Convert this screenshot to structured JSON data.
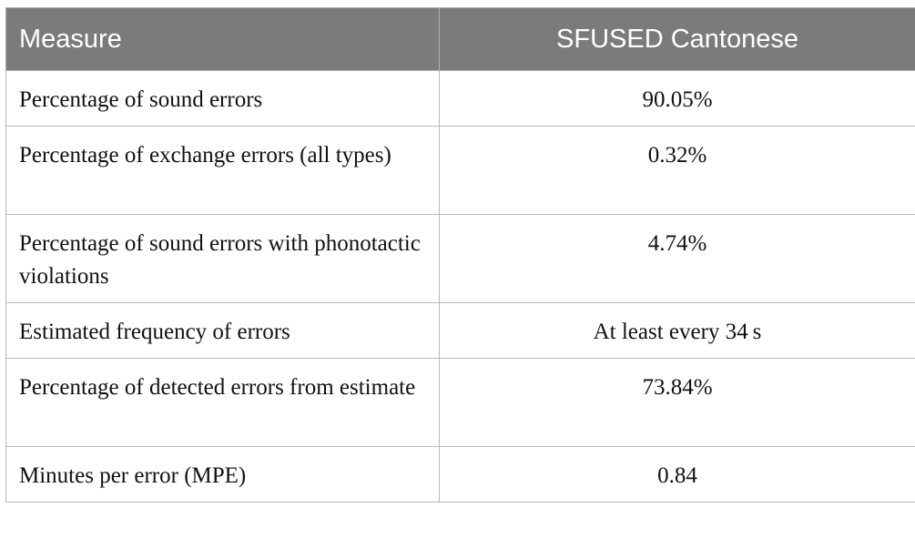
{
  "table": {
    "headers": [
      "Measure",
      "SFUSED Cantonese"
    ],
    "rows": [
      {
        "measure": "Percentage of sound errors",
        "value": "90.05%"
      },
      {
        "measure": "Percentage of exchange errors (all types)",
        "value": "0.32%"
      },
      {
        "measure": "Percentage of sound errors with phonotactic violations",
        "value": "4.74%"
      },
      {
        "measure": "Estimated frequency of errors",
        "value": "At least every 34 s"
      },
      {
        "measure": "Percentage of detected errors from estimate",
        "value": "73.84%"
      },
      {
        "measure": "Minutes per error (MPE)",
        "value": "0.84"
      }
    ]
  },
  "colors": {
    "header_bg": "#7b7b7b",
    "header_text": "#ffffff",
    "border": "#b8b8b8"
  }
}
